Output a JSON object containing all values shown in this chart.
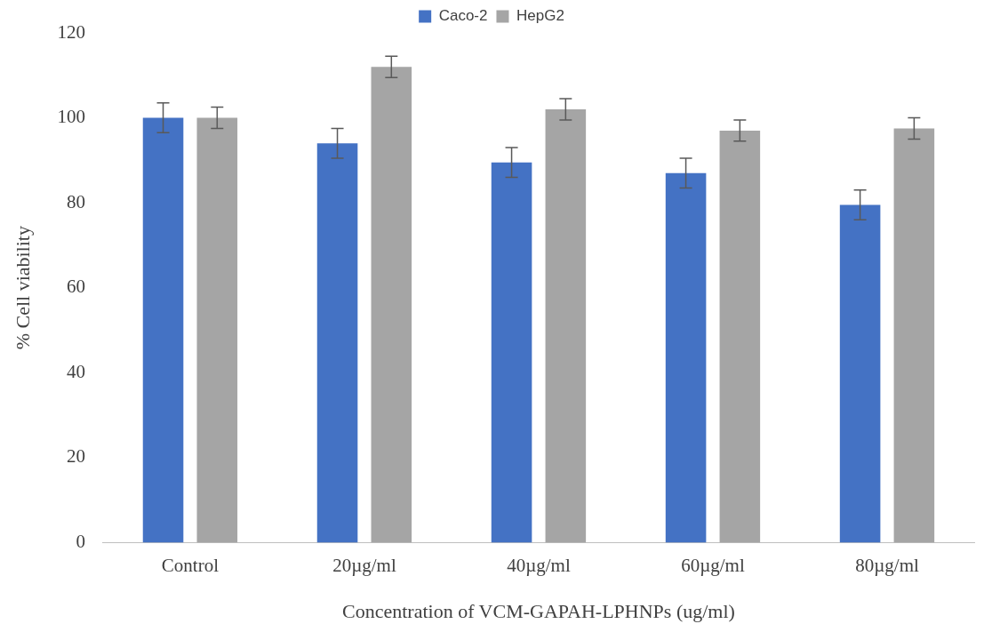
{
  "chart_data": {
    "type": "bar",
    "xlabel": "Concentration of VCM-GAPAH-LPHNPs (ug/ml)",
    "ylabel": "% Cell viability",
    "categories": [
      "Control",
      "20µg/ml",
      "40µg/ml",
      "60µg/ml",
      "80µg/ml"
    ],
    "series": [
      {
        "name": "Caco-2",
        "color": "#4472c4",
        "values": [
          100,
          94,
          89.5,
          87,
          79.5
        ],
        "errors": [
          3.5,
          3.5,
          3.5,
          3.5,
          3.5
        ]
      },
      {
        "name": "HepG2",
        "color": "#a5a5a5",
        "values": [
          100,
          112,
          102,
          97,
          97.5
        ],
        "errors": [
          2.5,
          2.5,
          2.5,
          2.5,
          2.5
        ]
      }
    ],
    "ylim": [
      0,
      120
    ],
    "yticks": [
      0,
      20,
      40,
      60,
      80,
      100,
      120
    ],
    "grid": false,
    "legend": "top"
  }
}
